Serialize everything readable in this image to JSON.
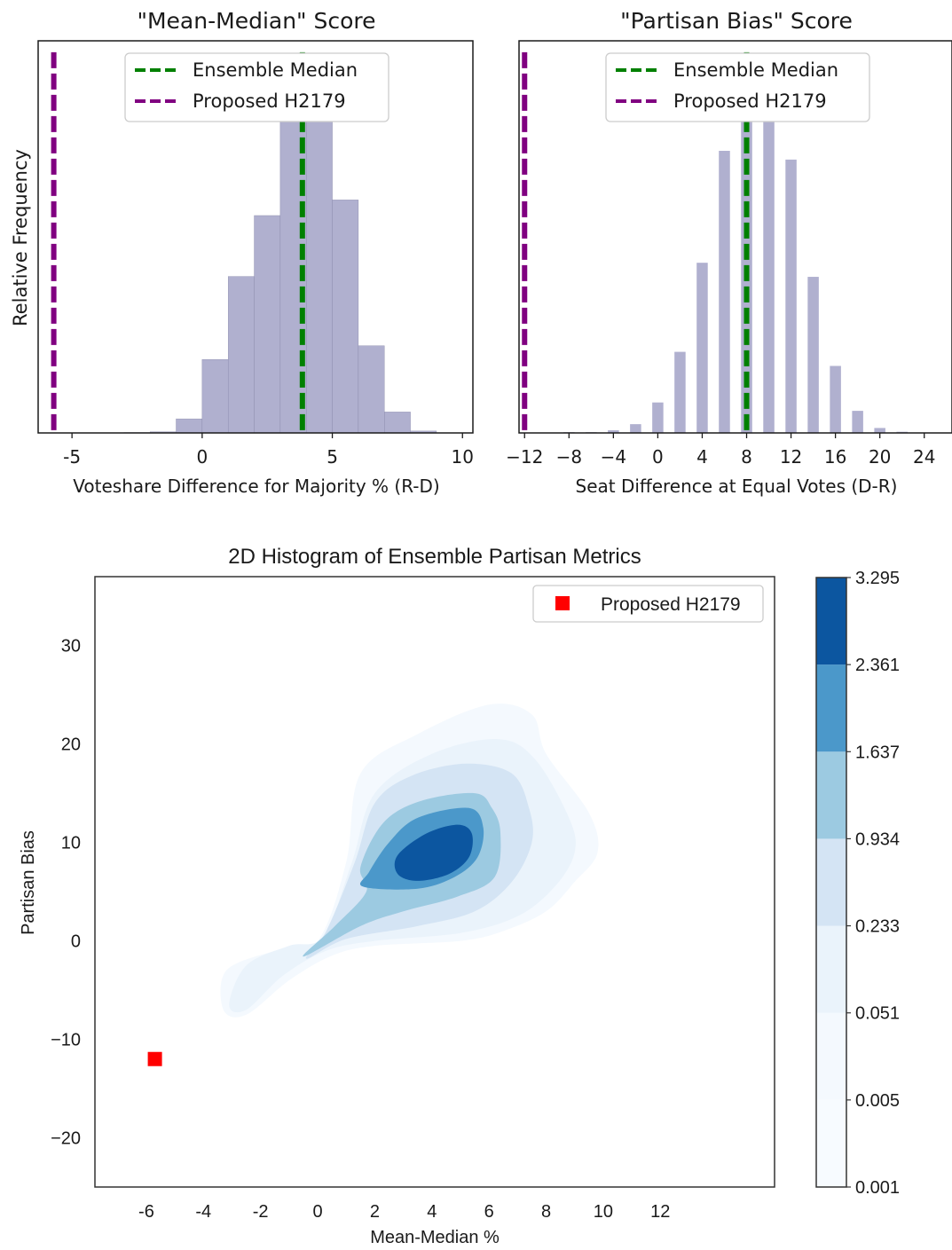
{
  "chart_data": [
    {
      "type": "bar",
      "title": "\"Mean-Median\" Score",
      "xlabel": "Voteshare Difference for Majority % (R-D)",
      "ylabel": "Relative Frequency",
      "xlim": [
        -6.3,
        10.4
      ],
      "ylim": [
        0,
        1.03
      ],
      "x_ticks": [
        -5,
        0,
        5,
        10
      ],
      "x_tick_labels": [
        "-5",
        "0",
        "5",
        "10"
      ],
      "bin_width": 1,
      "bin_starts": [
        -3,
        -2,
        -1,
        0,
        1,
        2,
        3,
        4,
        5,
        6,
        7,
        8
      ],
      "values": [
        0.001,
        0.003,
        0.037,
        0.193,
        0.411,
        0.571,
        0.873,
        0.971,
        0.612,
        0.229,
        0.055,
        0.005
      ],
      "bar_color": "#b0b0cf",
      "ensemble_median": 3.85,
      "proposed": -5.7,
      "legend": [
        "Ensemble Median",
        "Proposed H2179"
      ],
      "legend_position": "upper center",
      "line_colors": {
        "median": "#008000",
        "proposed": "#800080"
      }
    },
    {
      "type": "bar",
      "title": "\"Partisan Bias\" Score",
      "xlabel": "Seat Difference at Equal Votes (D-R)",
      "ylabel": "",
      "xlim": [
        -12.5,
        26.5
      ],
      "ylim": [
        0,
        1.03
      ],
      "x_ticks": [
        -12,
        -8,
        -4,
        0,
        4,
        8,
        12,
        16,
        20,
        24
      ],
      "x_tick_labels": [
        "−12",
        "−8",
        "−4",
        "0",
        "4",
        "8",
        "12",
        "16",
        "20",
        "24"
      ],
      "x": [
        -8,
        -6,
        -4,
        -2,
        0,
        2,
        4,
        6,
        8,
        10,
        12,
        14,
        16,
        18,
        20,
        22
      ],
      "values": [
        0.002,
        0.002,
        0.007,
        0.023,
        0.08,
        0.213,
        0.447,
        0.741,
        0.965,
        0.965,
        0.718,
        0.41,
        0.176,
        0.058,
        0.013,
        0.003
      ],
      "bar_color": "#b0b0cf",
      "ensemble_median": 8,
      "proposed": -12,
      "legend": [
        "Ensemble Median",
        "Proposed H2179"
      ],
      "legend_position": "upper center",
      "line_colors": {
        "median": "#008000",
        "proposed": "#800080"
      }
    },
    {
      "type": "heatmap",
      "title": "2D Histogram of Ensemble Partisan Metrics",
      "xlabel": "Mean-Median %",
      "ylabel": "Partisan Bias",
      "xlim": [
        -7.8,
        16
      ],
      "ylim": [
        -25,
        37
      ],
      "x_ticks": [
        -6,
        -4,
        -2,
        0,
        2,
        4,
        6,
        8,
        10,
        12
      ],
      "x_tick_labels": [
        "-6",
        "-4",
        "-2",
        "0",
        "2",
        "4",
        "6",
        "8",
        "10",
        "12"
      ],
      "y_ticks": [
        -20,
        -10,
        0,
        10,
        20,
        30
      ],
      "y_tick_labels": [
        "−20",
        "−10",
        "0",
        "10",
        "20",
        "30"
      ],
      "contour_levels": [
        0.001,
        0.005,
        0.051,
        0.233,
        0.934,
        1.637,
        2.361,
        3.295
      ],
      "colorbar_tick_labels": [
        "0.001",
        "0.005",
        "0.051",
        "0.233",
        "0.934",
        "1.637",
        "2.361",
        "3.295"
      ],
      "colormap": [
        "#f4f9fe",
        "#eaf3fb",
        "#d4e4f4",
        "#9ccae1",
        "#4b98ca",
        "#0c56a0"
      ],
      "peak": {
        "x": 4.3,
        "y": 9.5
      },
      "proposed": {
        "x": -5.7,
        "y": -12,
        "label": "Proposed H2179",
        "color": "#ff0000"
      },
      "legend_position": "upper right"
    }
  ]
}
